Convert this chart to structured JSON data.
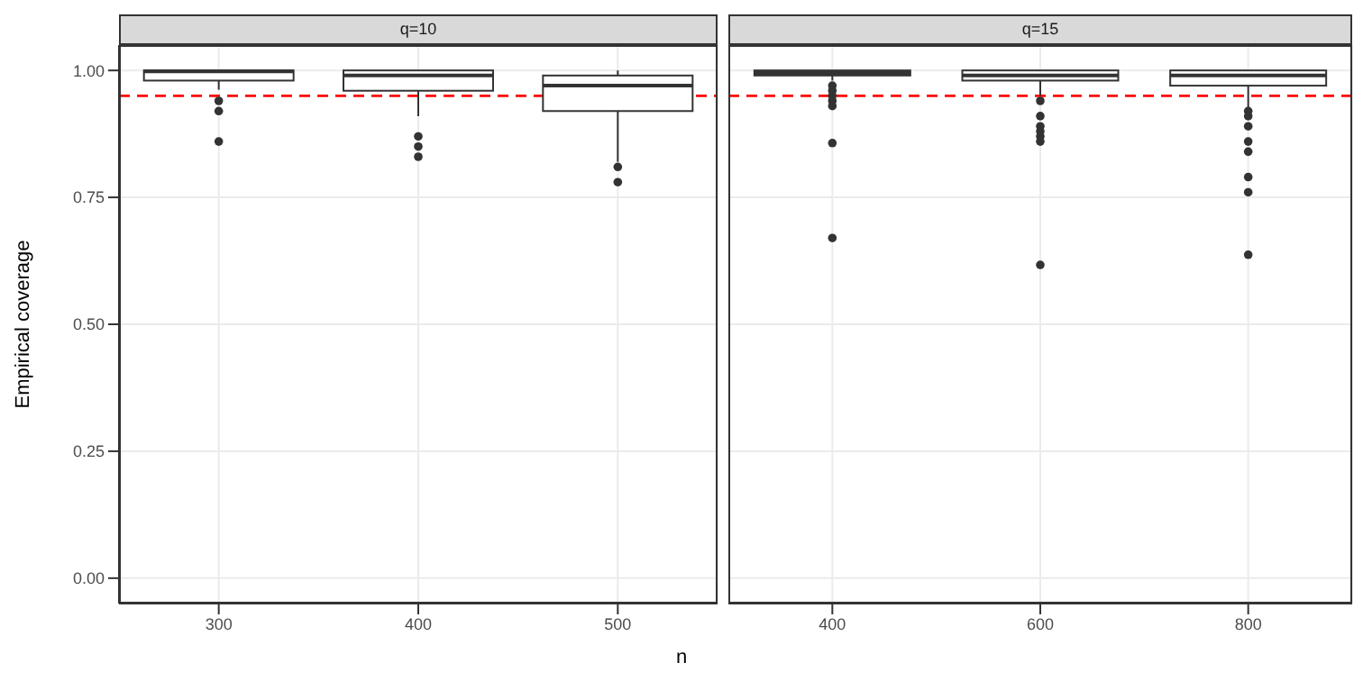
{
  "chart_data": [
    {
      "type": "box",
      "title": "q=10",
      "ylabel": "Empirical coverage",
      "xlabel": "n",
      "categories": [
        "300",
        "400",
        "500"
      ],
      "ylim": [
        -0.05,
        1.05
      ],
      "yticks": [
        {
          "value": 0,
          "label": "0.00"
        },
        {
          "value": 0.25,
          "label": "0.25"
        },
        {
          "value": 0.5,
          "label": "0.50"
        },
        {
          "value": 0.75,
          "label": "0.75"
        },
        {
          "value": 1,
          "label": "1.00"
        }
      ],
      "grid": true,
      "color": "#333333",
      "boxes": [
        {
          "low": 0.962,
          "q1": 0.98,
          "median": 0.998,
          "q3": 1.0,
          "high": 1.0,
          "outliers": [
            0.94,
            0.92,
            0.86
          ]
        },
        {
          "low": 0.91,
          "q1": 0.96,
          "median": 0.99,
          "q3": 1.0,
          "high": 1.0,
          "outliers": [
            0.87,
            0.85,
            0.83
          ]
        },
        {
          "low": 0.82,
          "q1": 0.92,
          "median": 0.97,
          "q3": 0.99,
          "high": 1.0,
          "outliers": [
            0.81,
            0.78
          ]
        }
      ],
      "ref_lines": [
        {
          "axis": "y",
          "value": 0.95,
          "color": "#ff0000",
          "line_style": "dashed"
        }
      ]
    },
    {
      "type": "box",
      "title": "q=15",
      "categories": [
        "400",
        "600",
        "800"
      ],
      "ylim": [
        -0.05,
        1.05
      ],
      "yticks": [
        {
          "value": 0,
          "label": null
        },
        {
          "value": 0.25,
          "label": null
        },
        {
          "value": 0.5,
          "label": null
        },
        {
          "value": 0.75,
          "label": null
        },
        {
          "value": 1,
          "label": null
        }
      ],
      "tick_labels": "x",
      "grid": true,
      "color": "#333333",
      "boxes": [
        {
          "low": 0.98,
          "q1": 0.99,
          "median": 0.995,
          "q3": 1.0,
          "high": 1.0,
          "outliers": [
            0.97,
            0.96,
            0.95,
            0.94,
            0.93,
            0.857,
            0.67
          ]
        },
        {
          "low": 0.95,
          "q1": 0.98,
          "median": 0.99,
          "q3": 1.0,
          "high": 1.0,
          "outliers": [
            0.94,
            0.91,
            0.89,
            0.88,
            0.87,
            0.86,
            0.617
          ]
        },
        {
          "low": 0.925,
          "q1": 0.97,
          "median": 0.99,
          "q3": 1.0,
          "high": 1.0,
          "outliers": [
            0.92,
            0.91,
            0.89,
            0.86,
            0.84,
            0.79,
            0.76,
            0.637
          ]
        }
      ],
      "ref_lines": [
        {
          "axis": "y",
          "value": 0.95,
          "color": "#ff0000",
          "line_style": "dashed"
        }
      ]
    }
  ]
}
